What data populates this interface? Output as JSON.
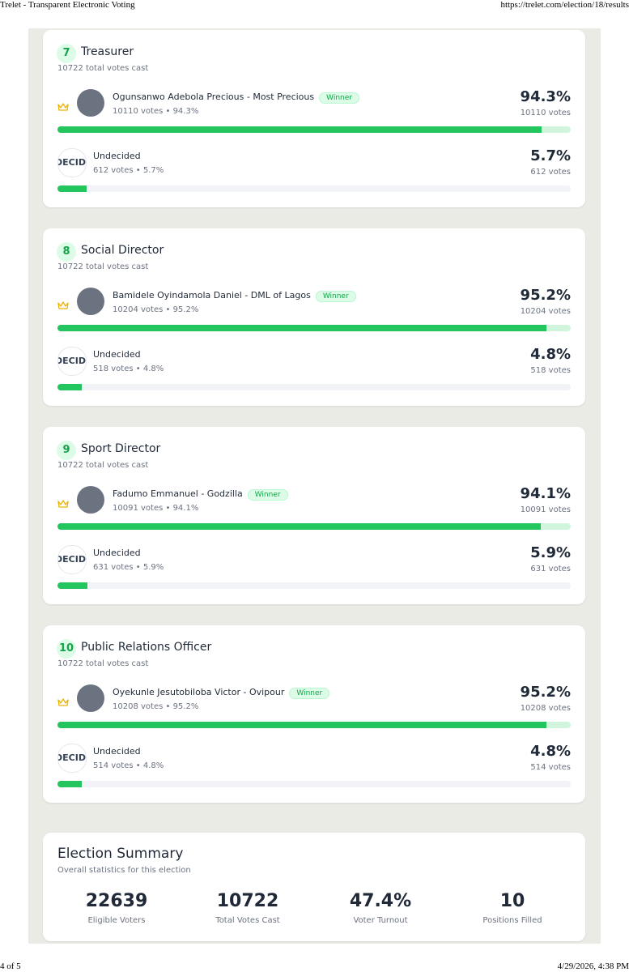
{
  "browser_header": {
    "title": "Trelet - Transparent Electronic Voting",
    "url": "https://trelet.com/election/18/results"
  },
  "positions": [
    {
      "number": 7,
      "title": "Treasurer",
      "total": "10722 total votes cast",
      "candidates": [
        {
          "name": "Ogunsanwo Adebola Precious - Most Precious",
          "winner": true,
          "badge": "Winner",
          "meta": "10110 votes • 94.3%",
          "percent": {
            "value": 94.3,
            "label": "94.3%"
          },
          "votes": "10110 votes"
        },
        {
          "name": "Undecided",
          "winner": false,
          "avatar_text": "DECID",
          "meta": "612 votes • 5.7%",
          "percent": {
            "value": 5.7,
            "label": "5.7%"
          },
          "votes": "612 votes"
        }
      ]
    },
    {
      "number": 8,
      "title": "Social Director",
      "total": "10722 total votes cast",
      "candidates": [
        {
          "name": "Bamidele Oyindamola Daniel - DML of Lagos",
          "winner": true,
          "badge": "Winner",
          "meta": "10204 votes • 95.2%",
          "percent": {
            "value": 95.2,
            "label": "95.2%"
          },
          "votes": "10204 votes"
        },
        {
          "name": "Undecided",
          "winner": false,
          "avatar_text": "DECID",
          "meta": "518 votes • 4.8%",
          "percent": {
            "value": 4.8,
            "label": "4.8%"
          },
          "votes": "518 votes"
        }
      ]
    },
    {
      "number": 9,
      "title": "Sport Director",
      "total": "10722 total votes cast",
      "candidates": [
        {
          "name": "Fadumo Emmanuel - Godzilla",
          "winner": true,
          "badge": "Winner",
          "meta": "10091 votes • 94.1%",
          "percent": {
            "value": 94.1,
            "label": "94.1%"
          },
          "votes": "10091 votes"
        },
        {
          "name": "Undecided",
          "winner": false,
          "avatar_text": "DECID",
          "meta": "631 votes • 5.9%",
          "percent": {
            "value": 5.9,
            "label": "5.9%"
          },
          "votes": "631 votes"
        }
      ]
    },
    {
      "number": 10,
      "title": "Public Relations Officer",
      "total": "10722 total votes cast",
      "candidates": [
        {
          "name": "Oyekunle Jesutobiloba Victor - Ovipour",
          "winner": true,
          "badge": "Winner",
          "meta": "10208 votes • 95.2%",
          "percent": {
            "value": 95.2,
            "label": "95.2%"
          },
          "votes": "10208 votes"
        },
        {
          "name": "Undecided",
          "winner": false,
          "avatar_text": "DECID",
          "meta": "514 votes • 4.8%",
          "percent": {
            "value": 4.8,
            "label": "4.8%"
          },
          "votes": "514 votes"
        }
      ]
    }
  ],
  "summary": {
    "title": "Election Summary",
    "subtitle": "Overall statistics for this election",
    "stats": [
      {
        "value": 22639,
        "label": "Eligible Voters"
      },
      {
        "value": 10722,
        "label": "Total Votes Cast"
      },
      {
        "value": "47.4%",
        "label": "Voter Turnout"
      },
      {
        "value": 10,
        "label": "Positions Filled"
      }
    ]
  },
  "footer": {
    "page": "4 of 5",
    "timestamp": "4/29/2026, 4:38 PM"
  }
}
